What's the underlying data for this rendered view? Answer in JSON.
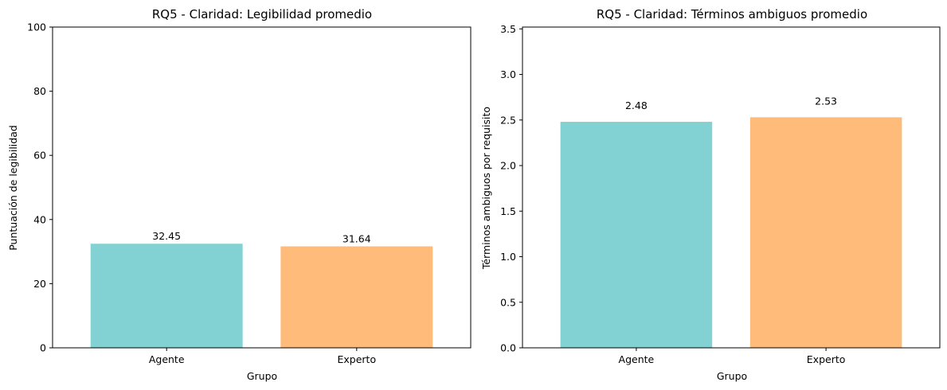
{
  "chart_data": [
    {
      "type": "bar",
      "title": "RQ5 - Claridad: Legibilidad promedio",
      "xlabel": "Grupo",
      "ylabel": "Puntuación de legibilidad",
      "categories": [
        "Agente",
        "Experto"
      ],
      "values": [
        32.45,
        31.64
      ],
      "value_labels": [
        "32.45",
        "31.64"
      ],
      "ylim": [
        0,
        100
      ],
      "yticks": [
        0,
        20,
        40,
        60,
        80,
        100
      ],
      "ytick_labels": [
        "0",
        "20",
        "40",
        "60",
        "80",
        "100"
      ],
      "colors": [
        "#82d1d3",
        "#ffbb7a"
      ],
      "grid": false
    },
    {
      "type": "bar",
      "title": "RQ5 - Claridad: Términos ambiguos promedio",
      "xlabel": "Grupo",
      "ylabel": "Términos ambiguos por requisito",
      "categories": [
        "Agente",
        "Experto"
      ],
      "values": [
        2.48,
        2.53
      ],
      "value_labels": [
        "2.48",
        "2.53"
      ],
      "ylim": [
        0,
        3.52
      ],
      "yticks": [
        0,
        0.5,
        1.0,
        1.5,
        2.0,
        2.5,
        3.0,
        3.5
      ],
      "ytick_labels": [
        "0.0",
        "0.5",
        "1.0",
        "1.5",
        "2.0",
        "2.5",
        "3.0",
        "3.5"
      ],
      "colors": [
        "#82d1d3",
        "#ffbb7a"
      ],
      "grid": false
    }
  ]
}
